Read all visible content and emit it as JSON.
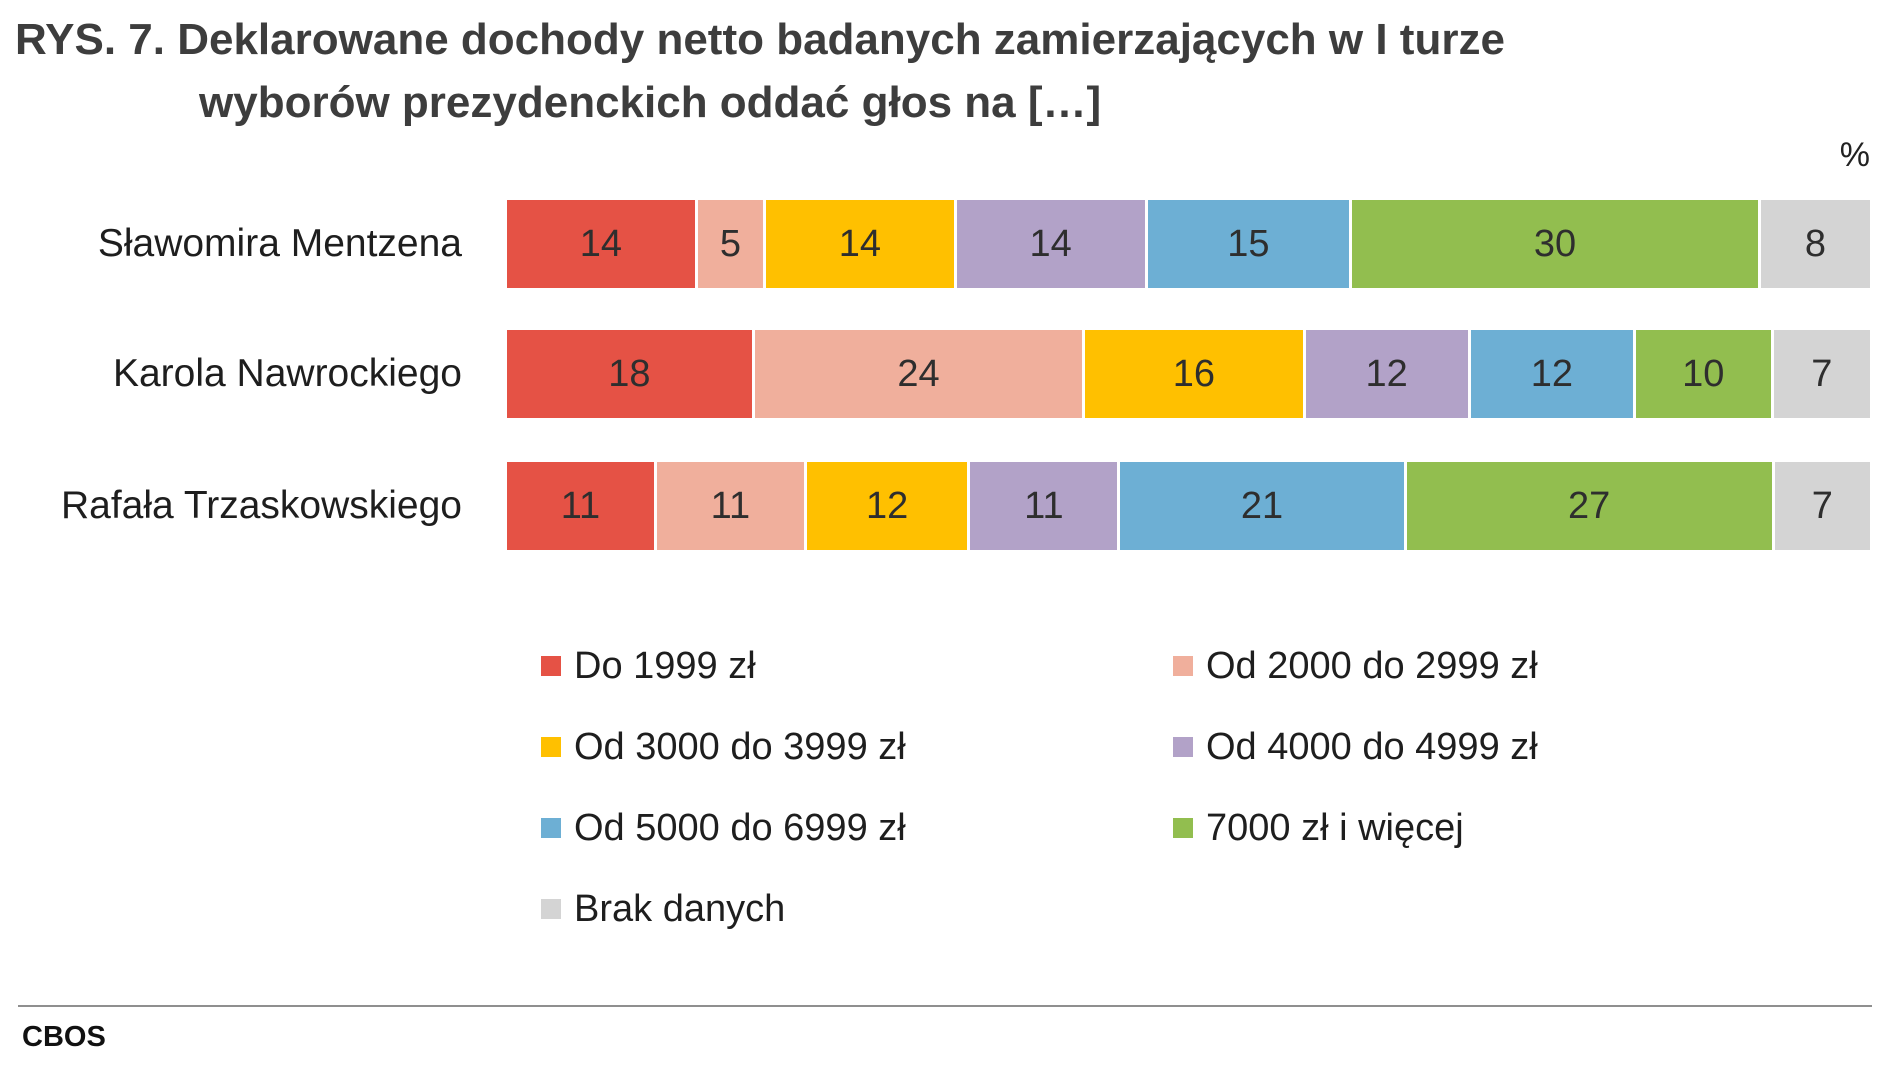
{
  "chart_data": {
    "type": "bar",
    "orientation": "horizontal",
    "stacked": true,
    "title_lines": [
      "RYS. 7. Deklarowane dochody netto badanych zamierzających w I turze",
      "wyborów prezydenckich oddać głos na […]"
    ],
    "unit": "%",
    "categories": [
      "Sławomira Mentzena",
      "Karola Nawrockiego",
      "Rafała Trzaskowskiego"
    ],
    "series": [
      {
        "name": "Do 1999 zł",
        "color": "#E55245",
        "values": [
          14,
          18,
          11
        ]
      },
      {
        "name": "Od 2000 do 2999 zł",
        "color": "#F0AF9C",
        "values": [
          5,
          24,
          11
        ]
      },
      {
        "name": "Od 3000 do 3999 zł",
        "color": "#FFC000",
        "values": [
          14,
          16,
          12
        ]
      },
      {
        "name": "Od 4000 do 4999 zł",
        "color": "#B2A2C8",
        "values": [
          14,
          12,
          11
        ]
      },
      {
        "name": "Od 5000 do 6999 zł",
        "color": "#6DAFD4",
        "values": [
          15,
          12,
          21
        ]
      },
      {
        "name": "7000 zł i więcej",
        "color": "#92BE4F",
        "values": [
          30,
          10,
          27
        ]
      },
      {
        "name": "Brak danych",
        "color": "#D4D4D4",
        "values": [
          8,
          7,
          7
        ]
      }
    ],
    "data_labels": true,
    "grid": false,
    "legend": "bottom"
  },
  "footer": {
    "source": "CBOS"
  }
}
